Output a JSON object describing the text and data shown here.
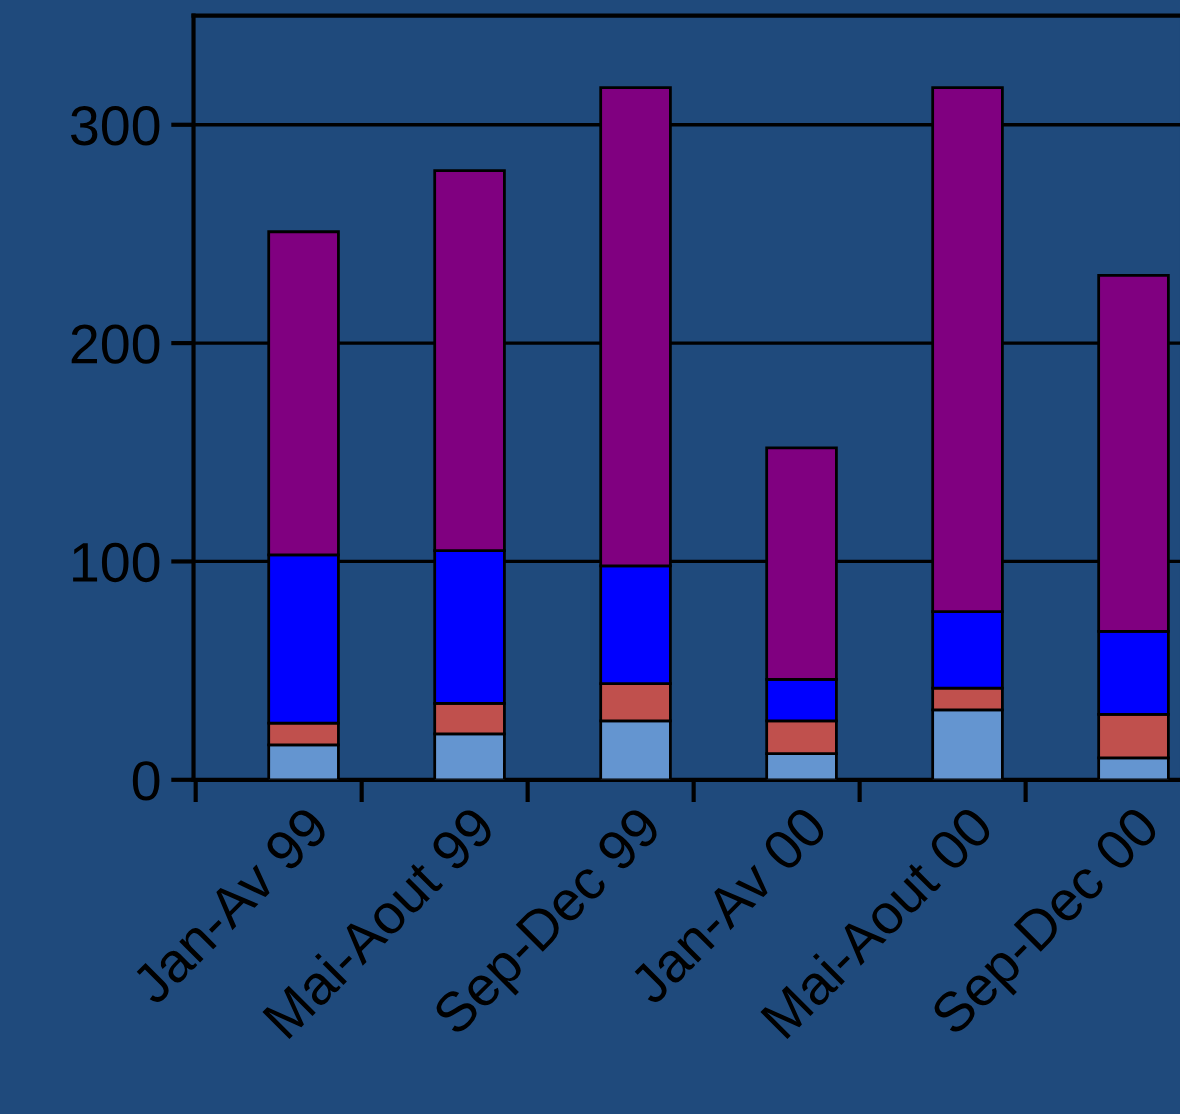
{
  "chart_data": {
    "type": "bar",
    "stacked": true,
    "categories": [
      "Jan-Av 99",
      "Mai-Aout 99",
      "Sep-Dec 99",
      "Jan-Av 00",
      "Mai-Aout 00",
      "Sep-Dec 00"
    ],
    "series": [
      {
        "color": "#6495d0",
        "values": [
          16,
          21,
          27,
          12,
          32,
          10
        ]
      },
      {
        "color": "#c0504d",
        "values": [
          10,
          14,
          17,
          15,
          10,
          20
        ]
      },
      {
        "color": "#0000ff",
        "values": [
          77,
          70,
          54,
          19,
          35,
          38
        ]
      },
      {
        "color": "#800080",
        "values": [
          148,
          174,
          219,
          106,
          240,
          163
        ]
      }
    ],
    "ylim": [
      0,
      350
    ],
    "yticks": [
      0,
      100,
      200,
      300
    ],
    "grid": "y"
  }
}
